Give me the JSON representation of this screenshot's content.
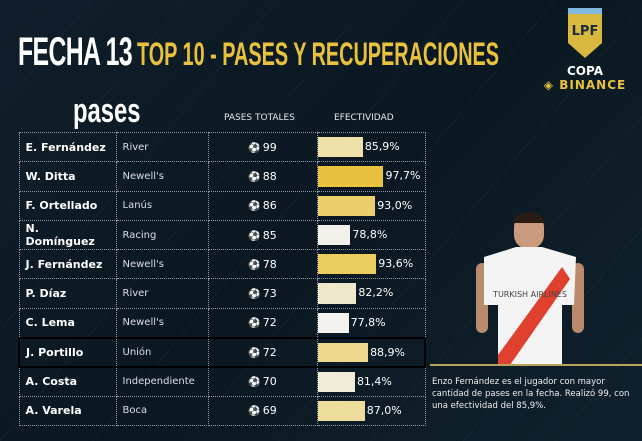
{
  "header": {
    "fecha": "FECHA 13",
    "subtitle": "TOP 10 - PASES Y RECUPERACIONES"
  },
  "logo": {
    "shield_text": "LPF",
    "copa": "COPA",
    "binance": "BINANCE"
  },
  "section_title": "pases",
  "columns": {
    "pases_totales": "PASES TOTALES",
    "efectividad": "EFECTIVIDAD"
  },
  "rows": [
    {
      "name": "E. Fernández",
      "team": "River",
      "passes": "99",
      "eff": "85,9%",
      "eff_value": 85.9,
      "color": "#eee0a8"
    },
    {
      "name": "W. Ditta",
      "team": "Newell's",
      "passes": "88",
      "eff": "97,7%",
      "eff_value": 97.7,
      "color": "#e8c23e"
    },
    {
      "name": "F. Ortellado",
      "team": "Lanús",
      "passes": "86",
      "eff": "93,0%",
      "eff_value": 93.0,
      "color": "#ebcf6a"
    },
    {
      "name": "N. Domínguez",
      "team": "Racing",
      "passes": "85",
      "eff": "78,8%",
      "eff_value": 78.8,
      "color": "#f2f0ea"
    },
    {
      "name": "J. Fernández",
      "team": "Newell's",
      "passes": "78",
      "eff": "93,6%",
      "eff_value": 93.6,
      "color": "#ebcd60"
    },
    {
      "name": "P. Díaz",
      "team": "River",
      "passes": "73",
      "eff": "82,2%",
      "eff_value": 82.2,
      "color": "#f0e8cc"
    },
    {
      "name": "C. Lema",
      "team": "Newell's",
      "passes": "72",
      "eff": "77,8%",
      "eff_value": 77.8,
      "color": "#f4f2ee"
    },
    {
      "name": "J. Portillo",
      "team": "Unión",
      "passes": "72",
      "eff": "88,9%",
      "eff_value": 88.9,
      "color": "#ecd98e"
    },
    {
      "name": "A. Costa",
      "team": "Independiente",
      "passes": "70",
      "eff": "81,4%",
      "eff_value": 81.4,
      "color": "#f0ecd8"
    },
    {
      "name": "A. Varela",
      "team": "Boca",
      "passes": "69",
      "eff": "87,0%",
      "eff_value": 87.0,
      "color": "#eedc9c"
    }
  ],
  "highlight_row": 7,
  "caption": "Enzo Fernández es el jugador con mayor cantidad de pases en la fecha. Realizó 99, con una efectividad del 85,9%.",
  "jersey": {
    "sponsor": "TURKISH AIRLINES"
  }
}
